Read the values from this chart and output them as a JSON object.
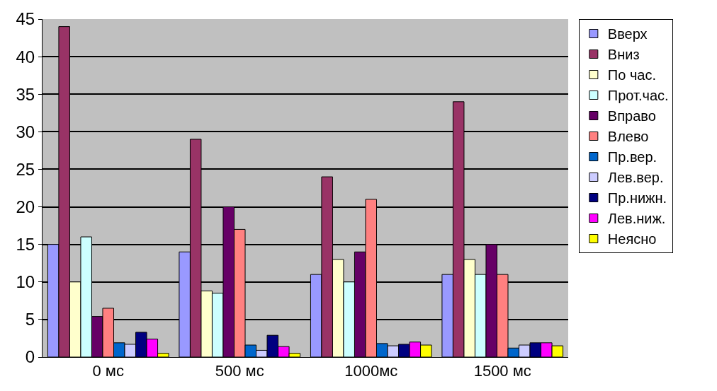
{
  "chart_data": {
    "type": "bar",
    "categories": [
      "0 мс",
      "500 мс",
      "1000мс",
      "1500 мс"
    ],
    "ylim": [
      0,
      45
    ],
    "yticks": [
      0,
      5,
      10,
      15,
      20,
      25,
      30,
      35,
      40,
      45
    ],
    "grid": "y",
    "legend": "right",
    "series": [
      {
        "name": "Вверх",
        "color": "#9999ff",
        "values": [
          15,
          14,
          11,
          11
        ]
      },
      {
        "name": "Вниз",
        "color": "#993366",
        "values": [
          44,
          29,
          24,
          34
        ]
      },
      {
        "name": "По час.",
        "color": "#ffffcc",
        "values": [
          10,
          8.8,
          13,
          13
        ]
      },
      {
        "name": "Прот.час.",
        "color": "#ccffff",
        "values": [
          16,
          8.5,
          10,
          11
        ]
      },
      {
        "name": "Вправо",
        "color": "#660066",
        "values": [
          5.4,
          20,
          14,
          15
        ]
      },
      {
        "name": "Влево",
        "color": "#ff8080",
        "values": [
          6.5,
          17,
          21,
          11
        ]
      },
      {
        "name": "Пр.вер.",
        "color": "#0066cc",
        "values": [
          1.9,
          1.6,
          1.8,
          1.2
        ]
      },
      {
        "name": "Лев.вер.",
        "color": "#ccccff",
        "values": [
          1.7,
          0.9,
          1.5,
          1.6
        ]
      },
      {
        "name": "Пр.нижн.",
        "color": "#000080",
        "values": [
          3.3,
          2.9,
          1.7,
          1.9
        ]
      },
      {
        "name": "Лев.ниж.",
        "color": "#ff00ff",
        "values": [
          2.4,
          1.4,
          2,
          1.9
        ]
      },
      {
        "name": "Неясно",
        "color": "#ffff00",
        "values": [
          0.5,
          0.5,
          1.6,
          1.5
        ]
      }
    ]
  }
}
